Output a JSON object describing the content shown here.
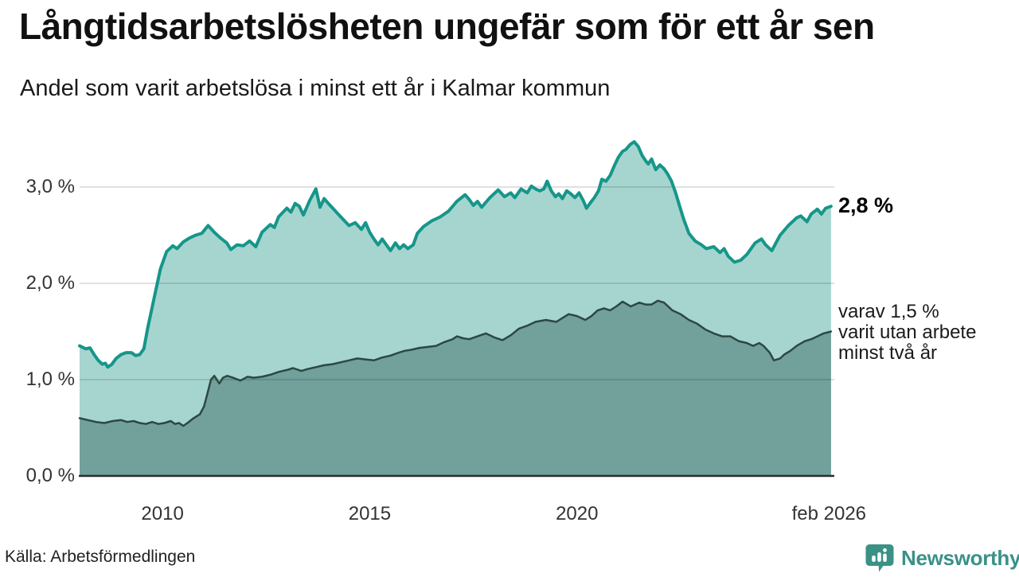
{
  "header": {
    "title": "Långtidsarbetslösheten ungefär som för ett år sen",
    "subtitle": "Andel som varit arbetslösa i minst ett år i Kalmar kommun"
  },
  "footer": {
    "source": "Källa: Arbetsförmedlingen",
    "brand": "Newsworthy",
    "brand_color": "#3a9186"
  },
  "chart_data": {
    "type": "area",
    "title": "Långtidsarbetslösheten ungefär som för ett år sen",
    "subtitle": "Andel som varit arbetslösa i minst ett år i Kalmar kommun",
    "unit": "percent of workforce",
    "x_domain": [
      2008,
      2026.17
    ],
    "ylim": [
      0,
      3.6
    ],
    "grid": true,
    "grid_color": "rgba(0,0,0,0.12)",
    "baseline_color": "#2b2b2b",
    "x_ticks": [
      {
        "x": 2010,
        "label": "2010"
      },
      {
        "x": 2015,
        "label": "2015"
      },
      {
        "x": 2020,
        "label": "2020"
      },
      {
        "x": 2026.08,
        "label": "feb 2026"
      }
    ],
    "y_ticks": [
      {
        "v": 0,
        "label": "0,0 %"
      },
      {
        "v": 1,
        "label": "1,0 %"
      },
      {
        "v": 2,
        "label": "2,0 %"
      },
      {
        "v": 3,
        "label": "3,0 %"
      }
    ],
    "series": [
      {
        "name": "Andel arbetslösa minst ett år",
        "line_color": "#16968a",
        "fill_color": "#a6d5cf",
        "line_width": 4,
        "end_label": "2,8 %",
        "last_value": 2.8,
        "points": [
          [
            2008.0,
            1.35
          ],
          [
            2008.15,
            1.32
          ],
          [
            2008.25,
            1.33
          ],
          [
            2008.35,
            1.26
          ],
          [
            2008.45,
            1.2
          ],
          [
            2008.55,
            1.16
          ],
          [
            2008.62,
            1.17
          ],
          [
            2008.68,
            1.13
          ],
          [
            2008.78,
            1.16
          ],
          [
            2008.88,
            1.22
          ],
          [
            2009.0,
            1.26
          ],
          [
            2009.12,
            1.28
          ],
          [
            2009.25,
            1.28
          ],
          [
            2009.35,
            1.25
          ],
          [
            2009.45,
            1.26
          ],
          [
            2009.55,
            1.32
          ],
          [
            2009.65,
            1.55
          ],
          [
            2009.8,
            1.85
          ],
          [
            2009.95,
            2.15
          ],
          [
            2010.1,
            2.33
          ],
          [
            2010.25,
            2.39
          ],
          [
            2010.35,
            2.36
          ],
          [
            2010.5,
            2.43
          ],
          [
            2010.65,
            2.47
          ],
          [
            2010.8,
            2.5
          ],
          [
            2010.95,
            2.52
          ],
          [
            2011.1,
            2.6
          ],
          [
            2011.25,
            2.53
          ],
          [
            2011.4,
            2.47
          ],
          [
            2011.55,
            2.42
          ],
          [
            2011.65,
            2.35
          ],
          [
            2011.8,
            2.4
          ],
          [
            2011.95,
            2.39
          ],
          [
            2012.1,
            2.44
          ],
          [
            2012.25,
            2.38
          ],
          [
            2012.4,
            2.53
          ],
          [
            2012.6,
            2.61
          ],
          [
            2012.7,
            2.58
          ],
          [
            2012.8,
            2.69
          ],
          [
            2013.0,
            2.78
          ],
          [
            2013.1,
            2.74
          ],
          [
            2013.2,
            2.83
          ],
          [
            2013.3,
            2.8
          ],
          [
            2013.4,
            2.71
          ],
          [
            2013.55,
            2.86
          ],
          [
            2013.7,
            2.98
          ],
          [
            2013.8,
            2.79
          ],
          [
            2013.9,
            2.88
          ],
          [
            2014.0,
            2.83
          ],
          [
            2014.15,
            2.76
          ],
          [
            2014.3,
            2.69
          ],
          [
            2014.5,
            2.6
          ],
          [
            2014.65,
            2.63
          ],
          [
            2014.8,
            2.56
          ],
          [
            2014.9,
            2.63
          ],
          [
            2015.0,
            2.53
          ],
          [
            2015.1,
            2.46
          ],
          [
            2015.2,
            2.4
          ],
          [
            2015.3,
            2.46
          ],
          [
            2015.4,
            2.4
          ],
          [
            2015.5,
            2.34
          ],
          [
            2015.62,
            2.42
          ],
          [
            2015.72,
            2.36
          ],
          [
            2015.82,
            2.4
          ],
          [
            2015.92,
            2.36
          ],
          [
            2016.05,
            2.4
          ],
          [
            2016.15,
            2.52
          ],
          [
            2016.3,
            2.59
          ],
          [
            2016.5,
            2.65
          ],
          [
            2016.7,
            2.69
          ],
          [
            2016.9,
            2.75
          ],
          [
            2017.1,
            2.85
          ],
          [
            2017.3,
            2.92
          ],
          [
            2017.4,
            2.87
          ],
          [
            2017.5,
            2.81
          ],
          [
            2017.6,
            2.85
          ],
          [
            2017.7,
            2.79
          ],
          [
            2017.9,
            2.89
          ],
          [
            2018.1,
            2.97
          ],
          [
            2018.25,
            2.9
          ],
          [
            2018.4,
            2.94
          ],
          [
            2018.5,
            2.89
          ],
          [
            2018.65,
            2.98
          ],
          [
            2018.8,
            2.94
          ],
          [
            2018.9,
            3.01
          ],
          [
            2019.0,
            2.98
          ],
          [
            2019.1,
            2.96
          ],
          [
            2019.2,
            2.98
          ],
          [
            2019.28,
            3.06
          ],
          [
            2019.38,
            2.96
          ],
          [
            2019.48,
            2.9
          ],
          [
            2019.56,
            2.93
          ],
          [
            2019.65,
            2.88
          ],
          [
            2019.75,
            2.96
          ],
          [
            2019.85,
            2.93
          ],
          [
            2019.95,
            2.89
          ],
          [
            2020.05,
            2.94
          ],
          [
            2020.15,
            2.86
          ],
          [
            2020.23,
            2.78
          ],
          [
            2020.33,
            2.84
          ],
          [
            2020.42,
            2.89
          ],
          [
            2020.52,
            2.96
          ],
          [
            2020.6,
            3.08
          ],
          [
            2020.7,
            3.06
          ],
          [
            2020.8,
            3.12
          ],
          [
            2020.9,
            3.22
          ],
          [
            2021.0,
            3.31
          ],
          [
            2021.1,
            3.37
          ],
          [
            2021.18,
            3.39
          ],
          [
            2021.28,
            3.44
          ],
          [
            2021.38,
            3.47
          ],
          [
            2021.48,
            3.42
          ],
          [
            2021.57,
            3.33
          ],
          [
            2021.66,
            3.27
          ],
          [
            2021.72,
            3.24
          ],
          [
            2021.8,
            3.29
          ],
          [
            2021.9,
            3.18
          ],
          [
            2022.0,
            3.23
          ],
          [
            2022.1,
            3.19
          ],
          [
            2022.18,
            3.14
          ],
          [
            2022.28,
            3.06
          ],
          [
            2022.38,
            2.94
          ],
          [
            2022.47,
            2.81
          ],
          [
            2022.57,
            2.67
          ],
          [
            2022.7,
            2.52
          ],
          [
            2022.85,
            2.44
          ],
          [
            2023.0,
            2.4
          ],
          [
            2023.12,
            2.36
          ],
          [
            2023.3,
            2.38
          ],
          [
            2023.45,
            2.32
          ],
          [
            2023.55,
            2.36
          ],
          [
            2023.65,
            2.28
          ],
          [
            2023.8,
            2.22
          ],
          [
            2023.95,
            2.24
          ],
          [
            2024.1,
            2.3
          ],
          [
            2024.3,
            2.42
          ],
          [
            2024.45,
            2.46
          ],
          [
            2024.55,
            2.4
          ],
          [
            2024.7,
            2.34
          ],
          [
            2024.9,
            2.5
          ],
          [
            2025.1,
            2.6
          ],
          [
            2025.3,
            2.68
          ],
          [
            2025.4,
            2.7
          ],
          [
            2025.55,
            2.64
          ],
          [
            2025.65,
            2.72
          ],
          [
            2025.8,
            2.77
          ],
          [
            2025.9,
            2.72
          ],
          [
            2026.0,
            2.78
          ],
          [
            2026.13,
            2.8
          ]
        ]
      },
      {
        "name": "varav utan arbete minst två år",
        "line_color": "#2c4843",
        "fill_color": "#72a09b",
        "line_width": 2.5,
        "end_label": "varav 1,5 %\nvarit utan arbete\nminst två år",
        "last_value": 1.5,
        "points": [
          [
            2008.0,
            0.6
          ],
          [
            2008.2,
            0.58
          ],
          [
            2008.4,
            0.56
          ],
          [
            2008.6,
            0.55
          ],
          [
            2008.8,
            0.57
          ],
          [
            2009.0,
            0.58
          ],
          [
            2009.15,
            0.56
          ],
          [
            2009.3,
            0.57
          ],
          [
            2009.45,
            0.55
          ],
          [
            2009.6,
            0.54
          ],
          [
            2009.75,
            0.56
          ],
          [
            2009.9,
            0.54
          ],
          [
            2010.05,
            0.55
          ],
          [
            2010.2,
            0.57
          ],
          [
            2010.3,
            0.54
          ],
          [
            2010.4,
            0.55
          ],
          [
            2010.5,
            0.52
          ],
          [
            2010.6,
            0.55
          ],
          [
            2010.75,
            0.6
          ],
          [
            2010.9,
            0.64
          ],
          [
            2011.0,
            0.72
          ],
          [
            2011.08,
            0.85
          ],
          [
            2011.17,
            1.0
          ],
          [
            2011.25,
            1.04
          ],
          [
            2011.37,
            0.96
          ],
          [
            2011.46,
            1.02
          ],
          [
            2011.56,
            1.04
          ],
          [
            2011.7,
            1.02
          ],
          [
            2011.88,
            0.99
          ],
          [
            2012.05,
            1.03
          ],
          [
            2012.2,
            1.02
          ],
          [
            2012.4,
            1.03
          ],
          [
            2012.6,
            1.05
          ],
          [
            2012.8,
            1.08
          ],
          [
            2013.0,
            1.1
          ],
          [
            2013.15,
            1.12
          ],
          [
            2013.35,
            1.09
          ],
          [
            2013.5,
            1.11
          ],
          [
            2013.7,
            1.13
          ],
          [
            2013.9,
            1.15
          ],
          [
            2014.1,
            1.16
          ],
          [
            2014.3,
            1.18
          ],
          [
            2014.5,
            1.2
          ],
          [
            2014.7,
            1.22
          ],
          [
            2014.9,
            1.21
          ],
          [
            2015.1,
            1.2
          ],
          [
            2015.3,
            1.23
          ],
          [
            2015.5,
            1.25
          ],
          [
            2015.7,
            1.28
          ],
          [
            2015.85,
            1.3
          ],
          [
            2016.0,
            1.31
          ],
          [
            2016.2,
            1.33
          ],
          [
            2016.4,
            1.34
          ],
          [
            2016.6,
            1.35
          ],
          [
            2016.8,
            1.39
          ],
          [
            2017.0,
            1.42
          ],
          [
            2017.1,
            1.45
          ],
          [
            2017.25,
            1.43
          ],
          [
            2017.4,
            1.42
          ],
          [
            2017.6,
            1.45
          ],
          [
            2017.8,
            1.48
          ],
          [
            2018.0,
            1.44
          ],
          [
            2018.2,
            1.41
          ],
          [
            2018.4,
            1.46
          ],
          [
            2018.6,
            1.53
          ],
          [
            2018.8,
            1.56
          ],
          [
            2019.0,
            1.6
          ],
          [
            2019.25,
            1.62
          ],
          [
            2019.5,
            1.6
          ],
          [
            2019.65,
            1.64
          ],
          [
            2019.8,
            1.68
          ],
          [
            2020.0,
            1.66
          ],
          [
            2020.2,
            1.62
          ],
          [
            2020.35,
            1.66
          ],
          [
            2020.5,
            1.72
          ],
          [
            2020.65,
            1.74
          ],
          [
            2020.8,
            1.72
          ],
          [
            2020.95,
            1.76
          ],
          [
            2021.1,
            1.81
          ],
          [
            2021.3,
            1.76
          ],
          [
            2021.5,
            1.8
          ],
          [
            2021.65,
            1.78
          ],
          [
            2021.8,
            1.78
          ],
          [
            2021.95,
            1.82
          ],
          [
            2022.1,
            1.8
          ],
          [
            2022.3,
            1.72
          ],
          [
            2022.5,
            1.68
          ],
          [
            2022.7,
            1.62
          ],
          [
            2022.9,
            1.58
          ],
          [
            2023.1,
            1.52
          ],
          [
            2023.3,
            1.48
          ],
          [
            2023.5,
            1.45
          ],
          [
            2023.7,
            1.45
          ],
          [
            2023.9,
            1.4
          ],
          [
            2024.1,
            1.38
          ],
          [
            2024.25,
            1.35
          ],
          [
            2024.4,
            1.38
          ],
          [
            2024.5,
            1.35
          ],
          [
            2024.65,
            1.28
          ],
          [
            2024.75,
            1.2
          ],
          [
            2024.9,
            1.22
          ],
          [
            2025.0,
            1.26
          ],
          [
            2025.15,
            1.3
          ],
          [
            2025.3,
            1.35
          ],
          [
            2025.5,
            1.4
          ],
          [
            2025.65,
            1.42
          ],
          [
            2025.8,
            1.45
          ],
          [
            2025.95,
            1.48
          ],
          [
            2026.13,
            1.5
          ]
        ]
      }
    ]
  }
}
